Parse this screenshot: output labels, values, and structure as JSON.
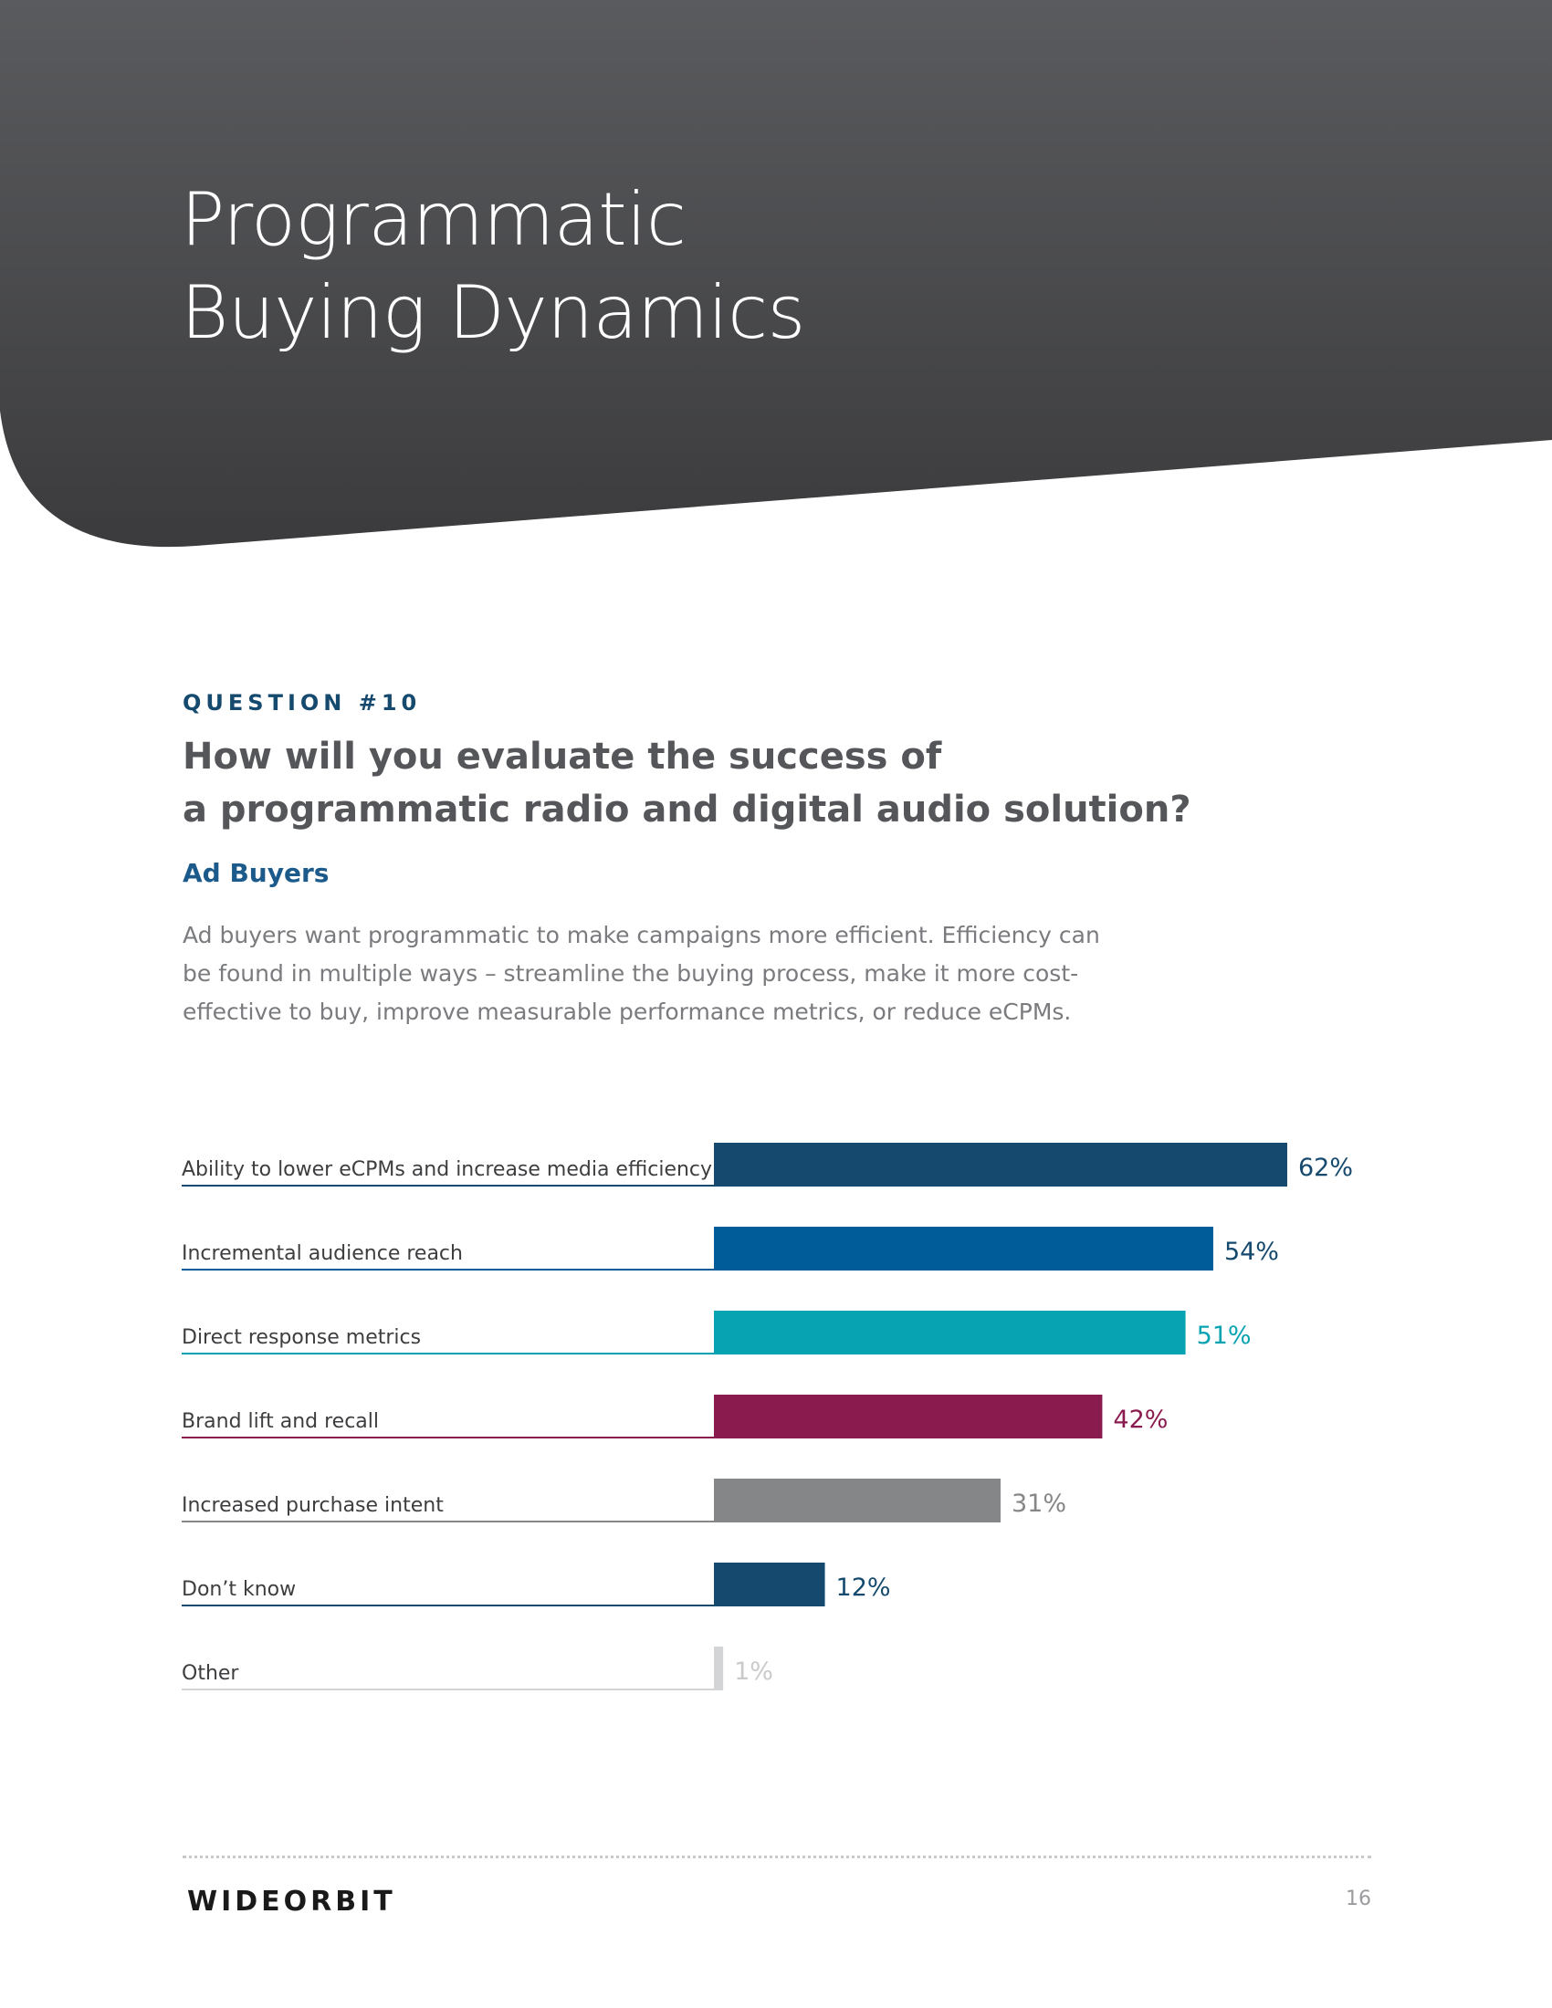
{
  "page": {
    "title_lines": [
      "Programmatic",
      "Buying Dynamics"
    ],
    "header_color": "#4a4b4d",
    "accent_color": "#154a6e"
  },
  "question": {
    "label": "QUESTION #10",
    "text_lines": [
      "How will you evaluate the success of",
      "a programmatic radio and digital audio solution?"
    ],
    "audience": "Ad Buyers",
    "description": "Ad buyers want programmatic to make campaigns more efficient. Efficiency can be found in multiple ways – streamline the buying process, make it more cost-effective to buy, improve measurable performance metrics, or reduce eCPMs."
  },
  "chart_data": {
    "type": "bar",
    "orientation": "horizontal",
    "categories": [
      "Ability to lower eCPMs and increase media efficiency",
      "Incremental audience reach",
      "Direct response metrics",
      "Brand lift and recall",
      "Increased purchase intent",
      "Don’t know",
      "Other"
    ],
    "values": [
      62,
      54,
      51,
      42,
      31,
      12,
      1
    ],
    "value_labels": [
      "62%",
      "54%",
      "51%",
      "42%",
      "31%",
      "12%",
      "1%"
    ],
    "colors": [
      "#154a6e",
      "#005b99",
      "#08a3b3",
      "#8a1b4e",
      "#858688",
      "#154a6e",
      "#d3d4d6"
    ],
    "xlim": [
      0,
      62
    ],
    "unit": "%"
  },
  "footer": {
    "logo": "WIDEORBIT",
    "page_number": "16"
  }
}
